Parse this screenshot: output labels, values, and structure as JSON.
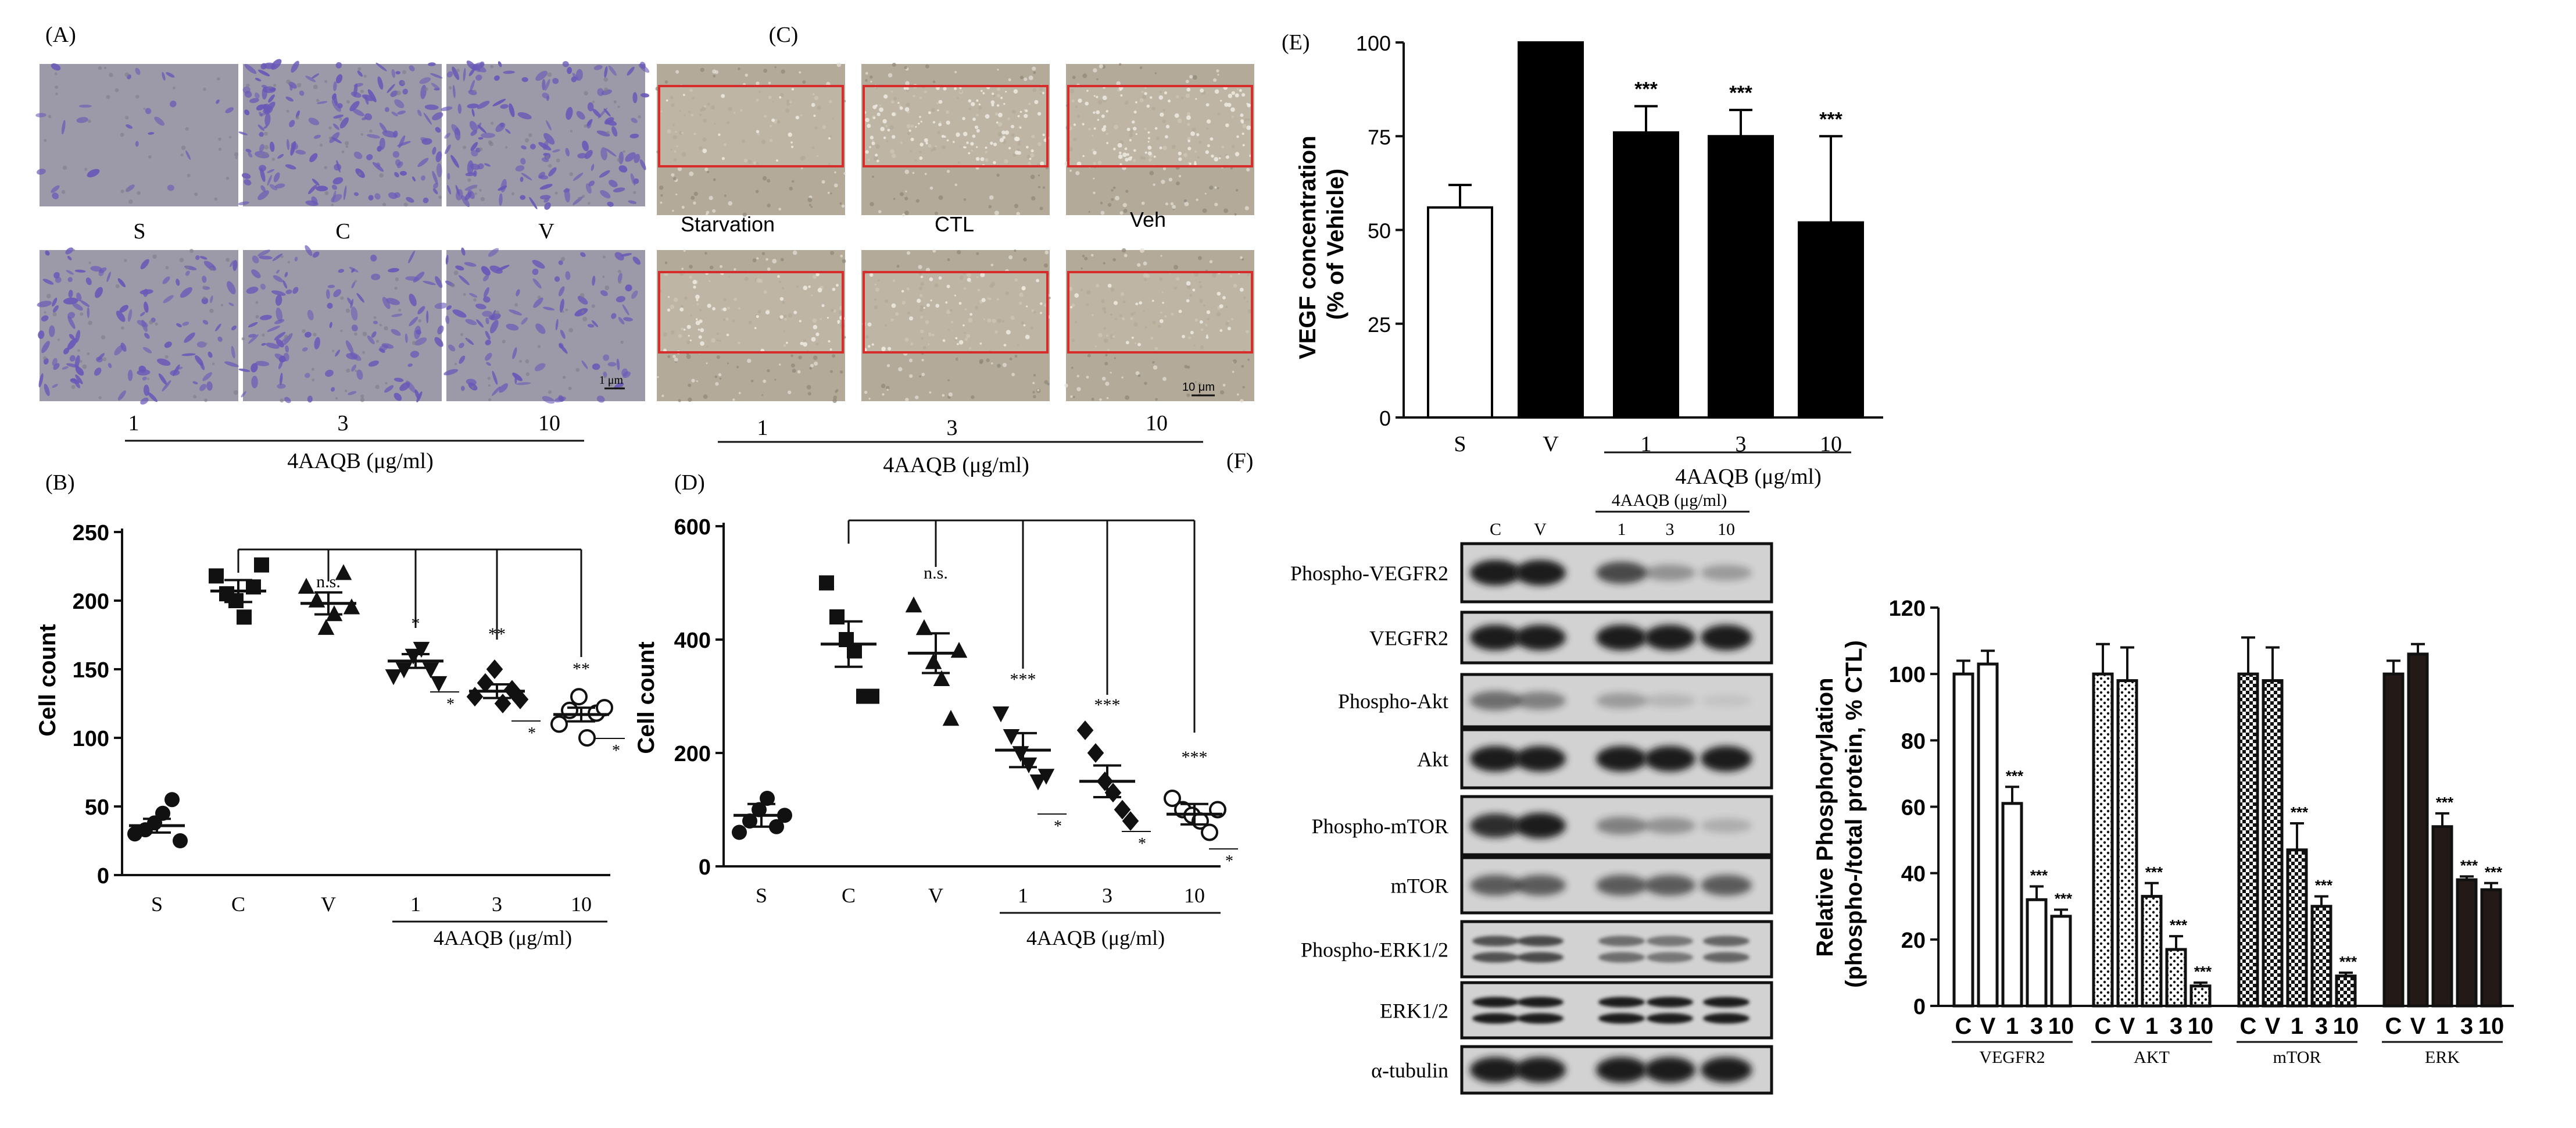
{
  "colors": {
    "ink": "#111111",
    "micro_bg": "#9c9aa8",
    "micro_stain": "#6a58b8",
    "scratch_bg": "#b3aa9a",
    "wound_box": "#d62c2c",
    "blot_bg": "#d2d2d2",
    "blot_band": "#1a1a1a"
  },
  "panels": {
    "A": {
      "label": "(A)",
      "top_labels": [
        "S",
        "C",
        "V"
      ],
      "bottom_labels": [
        "1",
        "3",
        "10"
      ],
      "xlabel": "4AAQB (μg/ml)",
      "scale_bar": "1 μm"
    },
    "C": {
      "label": "(C)",
      "top_labels": [
        "Starvation",
        "CTL",
        "Veh"
      ],
      "bottom_labels": [
        "1",
        "3",
        "10"
      ],
      "xlabel": "4AAQB (μg/ml)",
      "scale_bar": "10 μm"
    },
    "B": {
      "label": "(B)",
      "sig_vs_control": [
        "n.s.",
        "*",
        "**",
        "**"
      ],
      "sig_vs_vehicle": [
        "*",
        "*",
        "*"
      ]
    },
    "D": {
      "label": "(D)",
      "sig_vs_control": [
        "n.s.",
        "***",
        "***",
        "***"
      ],
      "sig_vs_vehicle": [
        "*",
        "*",
        "*"
      ]
    },
    "E": {
      "label": "(E)",
      "sig": [
        "***",
        "***",
        "***"
      ]
    },
    "F": {
      "label": "(F)",
      "lane_labels": [
        "C",
        "V",
        "1",
        "3",
        "10"
      ],
      "treatment_label": "4AAQB (μg/ml)",
      "blots": [
        "Phospho-VEGFR2",
        "VEGFR2",
        "Phospho-Akt",
        "Akt",
        "Phospho-mTOR",
        "mTOR",
        "Phospho-ERK1/2",
        "ERK1/2",
        "α-tubulin"
      ],
      "phospho_levels": {
        "Phospho-VEGFR2": [
          1.0,
          1.0,
          0.75,
          0.35,
          0.3
        ],
        "Phospho-Akt": [
          0.55,
          0.45,
          0.3,
          0.15,
          0.05
        ],
        "Phospho-mTOR": [
          0.9,
          1.0,
          0.45,
          0.35,
          0.2
        ],
        "Phospho-ERK1/2": [
          0.7,
          0.75,
          0.55,
          0.5,
          0.6
        ]
      }
    }
  },
  "chart_data": [
    {
      "id": "B",
      "type": "scatter",
      "title": "",
      "xlabel": "4AAQB (μg/ml)",
      "ylabel": "Cell count",
      "categories": [
        "S",
        "C",
        "V",
        "1",
        "3",
        "10"
      ],
      "ylim": [
        0,
        250
      ],
      "yticks": [
        0,
        50,
        100,
        150,
        200,
        250
      ],
      "markers": [
        "circle",
        "square",
        "triangle",
        "inverted-triangle",
        "diamond",
        "open-circle"
      ],
      "means": [
        36,
        207,
        198,
        156,
        134,
        117
      ],
      "sem": [
        5,
        8,
        8,
        5,
        5,
        5
      ],
      "points": [
        [
          30,
          33,
          38,
          45,
          55,
          25
        ],
        [
          218,
          205,
          200,
          188,
          210,
          226
        ],
        [
          210,
          200,
          180,
          190,
          220,
          195
        ],
        [
          145,
          150,
          160,
          165,
          150,
          140
        ],
        [
          130,
          140,
          150,
          125,
          135,
          128
        ],
        [
          110,
          120,
          130,
          100,
          118,
          122
        ]
      ]
    },
    {
      "id": "D",
      "type": "scatter",
      "title": "",
      "xlabel": "4AAQB (μg/ml)",
      "ylabel": "Cell count",
      "categories": [
        "S",
        "C",
        "V",
        "1",
        "3",
        "10"
      ],
      "ylim": [
        0,
        600
      ],
      "yticks": [
        0,
        200,
        400,
        600
      ],
      "markers": [
        "circle",
        "square",
        "triangle",
        "inverted-triangle",
        "diamond",
        "open-circle"
      ],
      "means": [
        90,
        392,
        376,
        205,
        150,
        92
      ],
      "sem": [
        20,
        40,
        35,
        30,
        28,
        18
      ],
      "points": [
        [
          60,
          80,
          100,
          120,
          70,
          90
        ],
        [
          500,
          440,
          400,
          380,
          300,
          300
        ],
        [
          460,
          420,
          360,
          330,
          260,
          380
        ],
        [
          270,
          230,
          200,
          180,
          150,
          160
        ],
        [
          240,
          200,
          150,
          130,
          100,
          80
        ],
        [
          120,
          100,
          90,
          80,
          60,
          100
        ]
      ]
    },
    {
      "id": "E",
      "type": "bar",
      "title": "",
      "xlabel": "4AAQB (μg/ml)",
      "ylabel": "VEGF concentration (% of Vehicle)",
      "categories": [
        "S",
        "V",
        "1",
        "3",
        "10"
      ],
      "values": [
        56,
        100,
        76,
        75,
        52
      ],
      "errors": [
        6,
        0,
        7,
        7,
        23
      ],
      "ylim": [
        0,
        100
      ],
      "yticks": [
        0,
        25,
        50,
        75,
        100
      ]
    },
    {
      "id": "F",
      "type": "bar",
      "title": "",
      "ylabel": "Relative Phosphorylation (phospho-/total protein, % CTL)",
      "categories": [
        "C",
        "V",
        "1",
        "3",
        "10"
      ],
      "groups": [
        "VEGFR2",
        "AKT",
        "mTOR",
        "ERK"
      ],
      "series": [
        {
          "name": "VEGFR2",
          "values": [
            100,
            103,
            61,
            32,
            27
          ],
          "errors": [
            4,
            4,
            5,
            4,
            2
          ],
          "sig": [
            "",
            "",
            "***",
            "***",
            "***"
          ]
        },
        {
          "name": "AKT",
          "values": [
            100,
            98,
            33,
            17,
            6
          ],
          "errors": [
            9,
            10,
            4,
            4,
            1
          ],
          "sig": [
            "",
            "",
            "***",
            "***",
            "***"
          ]
        },
        {
          "name": "mTOR",
          "values": [
            100,
            98,
            47,
            30,
            9
          ],
          "errors": [
            11,
            10,
            8,
            3,
            1
          ],
          "sig": [
            "",
            "",
            "***",
            "***",
            "***"
          ]
        },
        {
          "name": "ERK",
          "values": [
            100,
            106,
            54,
            38,
            35
          ],
          "errors": [
            4,
            3,
            4,
            1,
            2
          ],
          "sig": [
            "",
            "",
            "***",
            "***",
            "***"
          ]
        }
      ],
      "ylim": [
        0,
        120
      ],
      "yticks": [
        0,
        20,
        40,
        60,
        80,
        100,
        120
      ]
    }
  ]
}
